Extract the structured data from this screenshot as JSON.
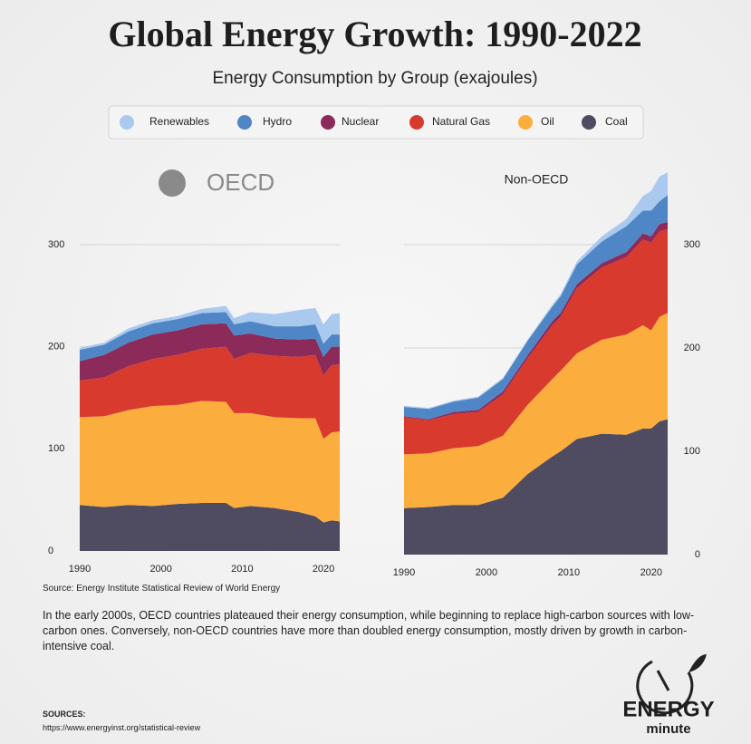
{
  "title": "Global Energy Growth: 1990-2022",
  "subtitle": "Energy Consumption by Group (exajoules)",
  "chart_data": [
    {
      "type": "stacked-area",
      "title": "OECD",
      "x": [
        1990,
        1993,
        1996,
        1999,
        2002,
        2005,
        2008,
        2009,
        2011,
        2014,
        2017,
        2019,
        2020,
        2021,
        2022
      ],
      "xlim": [
        1990,
        2022
      ],
      "xticks": [
        1990,
        2000,
        2010,
        2020
      ],
      "ylim": [
        0,
        300
      ],
      "yticks": [
        0,
        100,
        200,
        300
      ],
      "grid": true,
      "series": [
        {
          "name": "Coal",
          "color": "#4f4b61",
          "values": [
            45,
            43,
            45,
            44,
            46,
            47,
            47,
            42,
            44,
            42,
            38,
            34,
            28,
            30,
            29
          ]
        },
        {
          "name": "Oil",
          "color": "#fbad3e",
          "values": [
            86,
            89,
            93,
            98,
            97,
            100,
            99,
            93,
            91,
            89,
            92,
            96,
            82,
            86,
            88
          ]
        },
        {
          "name": "Natural Gas",
          "color": "#d83a2e",
          "values": [
            36,
            38,
            43,
            46,
            49,
            51,
            54,
            53,
            59,
            60,
            60,
            62,
            62,
            66,
            66
          ]
        },
        {
          "name": "Nuclear",
          "color": "#8c2a5a",
          "values": [
            19,
            22,
            23,
            24,
            24,
            24,
            23,
            23,
            19,
            17,
            17,
            16,
            18,
            18,
            17
          ]
        },
        {
          "name": "Hydro",
          "color": "#4f86c6",
          "values": [
            11,
            10,
            11,
            11,
            11,
            11,
            11,
            11,
            12,
            12,
            13,
            14,
            13,
            12,
            12
          ]
        },
        {
          "name": "Renewables",
          "color": "#a9c9ee",
          "values": [
            2,
            2,
            3,
            3,
            3,
            4,
            6,
            6,
            9,
            12,
            16,
            16,
            19,
            20,
            21
          ]
        }
      ]
    },
    {
      "type": "stacked-area",
      "title": "Non-OECD",
      "x": [
        1990,
        1993,
        1996,
        1999,
        2002,
        2005,
        2008,
        2009,
        2011,
        2014,
        2017,
        2019,
        2020,
        2021,
        2022
      ],
      "xlim": [
        1990,
        2022
      ],
      "xticks": [
        1990,
        2000,
        2010,
        2020
      ],
      "ylim": [
        0,
        370
      ],
      "yticks": [
        0,
        100,
        200,
        300
      ],
      "grid": true,
      "series": [
        {
          "name": "Coal",
          "color": "#4f4b61",
          "values": [
            45,
            46,
            48,
            48,
            55,
            78,
            95,
            100,
            112,
            117,
            116,
            122,
            122,
            129,
            131
          ]
        },
        {
          "name": "Oil",
          "color": "#fbad3e",
          "values": [
            52,
            52,
            55,
            57,
            60,
            67,
            75,
            78,
            83,
            91,
            97,
            100,
            95,
            101,
            103
          ]
        },
        {
          "name": "Natural Gas",
          "color": "#d83a2e",
          "values": [
            36,
            32,
            33,
            33,
            40,
            45,
            52,
            52,
            63,
            70,
            75,
            83,
            85,
            83,
            81
          ]
        },
        {
          "name": "Nuclear",
          "color": "#8c2a5a",
          "values": [
            1,
            1,
            2,
            2,
            3,
            3,
            4,
            4,
            4,
            4,
            5,
            6,
            6,
            7,
            7
          ]
        },
        {
          "name": "Hydro",
          "color": "#4f86c6",
          "values": [
            9,
            10,
            10,
            12,
            12,
            14,
            14,
            16,
            19,
            21,
            25,
            22,
            25,
            22,
            26
          ]
        },
        {
          "name": "Renewables",
          "color": "#a9c9ee",
          "values": [
            1,
            1,
            1,
            1,
            1,
            1,
            2,
            2,
            3,
            5,
            7,
            14,
            19,
            24,
            22
          ]
        }
      ]
    }
  ],
  "source": "Source: Energy Institute Statistical Review of World Energy",
  "description": "In the early 2000s, OECD countries plateaued their energy consumption, while beginning to replace high-carbon sources with low-carbon ones. Conversely, non-OECD countries have more than doubled energy consumption, mostly driven by growth in carbon-intensive coal.",
  "sources_heading": "SOURCES:",
  "sources_url": "https://www.energyinst.org/statistical-review",
  "brand": {
    "name": "ENERGY",
    "tagline": "minute"
  }
}
